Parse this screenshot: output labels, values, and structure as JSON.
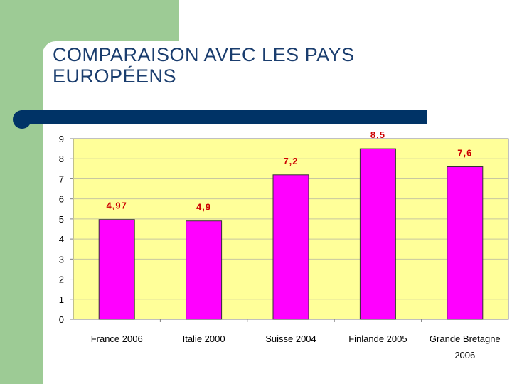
{
  "slide": {
    "title_line1": "COMPARAISON AVEC LES PAYS",
    "title_line2": "EUROPÉENS"
  },
  "colors": {
    "sidebar": "#9dcb95",
    "rule": "#003366",
    "title": "#1a3d6e",
    "plot_bg": "#ffff99",
    "bar": "#ff00ff",
    "label": "#cc0000"
  },
  "chart_data": {
    "type": "bar",
    "title": "",
    "xlabel": "",
    "ylabel": "",
    "categories": [
      "France 2006",
      "Italie 2000",
      "Suisse 2004",
      "Finlande 2005",
      "Grande Bretagne 2006"
    ],
    "category_lines": [
      [
        "France 2006"
      ],
      [
        "Italie 2000"
      ],
      [
        "Suisse 2004"
      ],
      [
        "Finlande 2005"
      ],
      [
        "Grande Bretagne",
        "2006"
      ]
    ],
    "values": [
      4.97,
      4.9,
      7.2,
      8.5,
      7.6
    ],
    "value_labels": [
      "4,97",
      "4,9",
      "7,2",
      "8,5",
      "7,6"
    ],
    "yticks": [
      "0",
      "1",
      "2",
      "3",
      "4",
      "5",
      "6",
      "7",
      "8",
      "9"
    ],
    "ylim": [
      0,
      9
    ],
    "grid": true,
    "legend": "none"
  }
}
